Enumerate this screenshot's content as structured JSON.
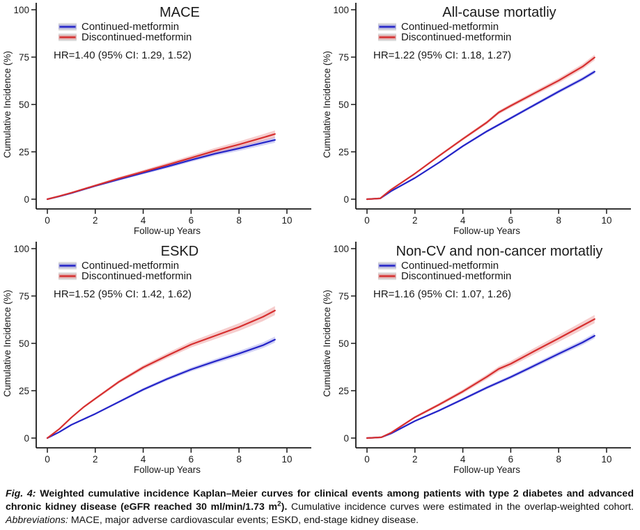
{
  "axes": {
    "x_label": "Follow-up Years",
    "y_label": "Cumulative Incidence (%)",
    "x_ticks": [
      0,
      2,
      4,
      6,
      8,
      10
    ],
    "y_ticks": [
      0,
      25,
      50,
      75,
      100
    ],
    "x_range": [
      0,
      10
    ],
    "y_range": [
      0,
      100
    ],
    "grid": "off",
    "legend_position": "top-left-inside"
  },
  "colors": {
    "continued_line": "#2424C8",
    "discontinued_line": "#D62F2F",
    "continued_ribbon": "rgba(90,90,220,0.28)",
    "discontinued_ribbon": "rgba(225,90,90,0.30)",
    "legend_key_bg": "#DEDEDE",
    "axis": "#1a1a1a"
  },
  "chart_data": [
    {
      "type": "line",
      "title": "MACE",
      "hr_label": "HR=1.40 (95% CI: 1.29, 1.52)",
      "xlabel": "Follow-up Years",
      "ylabel": "Cumulative Incidence (%)",
      "xlim": [
        0,
        10
      ],
      "ylim": [
        0,
        100
      ],
      "series": [
        {
          "name": "Continued-metformin",
          "color": "#2424C8",
          "ribbon": "rgba(90,90,220,0.28)",
          "ci_halfwidth_end": 1.3,
          "points": [
            [
              0,
              0
            ],
            [
              0.5,
              1.5
            ],
            [
              1,
              3.2
            ],
            [
              2,
              7.0
            ],
            [
              3,
              10.5
            ],
            [
              4,
              13.9
            ],
            [
              5,
              17.2
            ],
            [
              6,
              20.7
            ],
            [
              7,
              24.0
            ],
            [
              8,
              26.8
            ],
            [
              9,
              29.8
            ],
            [
              9.5,
              31.3
            ]
          ]
        },
        {
          "name": "Discontinued-metformin",
          "color": "#D62F2F",
          "ribbon": "rgba(225,90,90,0.30)",
          "ci_halfwidth_end": 1.7,
          "points": [
            [
              0,
              0
            ],
            [
              0.5,
              1.6
            ],
            [
              1,
              3.4
            ],
            [
              2,
              7.2
            ],
            [
              3,
              11.0
            ],
            [
              4,
              14.5
            ],
            [
              5,
              18.1
            ],
            [
              6,
              21.8
            ],
            [
              7,
              25.6
            ],
            [
              8,
              28.9
            ],
            [
              9,
              32.5
            ],
            [
              9.5,
              34.4
            ]
          ]
        }
      ]
    },
    {
      "type": "line",
      "title": "All-cause mortatliy",
      "hr_label": "HR=1.22 (95% CI: 1.18, 1.27)",
      "xlabel": "Follow-up Years",
      "ylabel": "Cumulative Incidence (%)",
      "xlim": [
        0,
        10
      ],
      "ylim": [
        0,
        100
      ],
      "series": [
        {
          "name": "Continued-metformin",
          "color": "#2424C8",
          "ribbon": "rgba(90,90,220,0.28)",
          "ci_halfwidth_end": 0.9,
          "points": [
            [
              0,
              0
            ],
            [
              0.55,
              0.4
            ],
            [
              1,
              4.2
            ],
            [
              2,
              11.2
            ],
            [
              3,
              19.3
            ],
            [
              4,
              28.0
            ],
            [
              5,
              35.8
            ],
            [
              6,
              42.8
            ],
            [
              7,
              49.8
            ],
            [
              8,
              56.8
            ],
            [
              9,
              63.5
            ],
            [
              9.5,
              67.3
            ]
          ]
        },
        {
          "name": "Discontinued-metformin",
          "color": "#D62F2F",
          "ribbon": "rgba(225,90,90,0.30)",
          "ci_halfwidth_end": 1.3,
          "points": [
            [
              0,
              0
            ],
            [
              0.55,
              0.4
            ],
            [
              1,
              5.0
            ],
            [
              2,
              13.5
            ],
            [
              3,
              22.8
            ],
            [
              4,
              31.8
            ],
            [
              5,
              40.5
            ],
            [
              5.5,
              45.8
            ],
            [
              6,
              49.3
            ],
            [
              7,
              56.0
            ],
            [
              8,
              62.6
            ],
            [
              9,
              70.0
            ],
            [
              9.5,
              74.8
            ]
          ]
        }
      ]
    },
    {
      "type": "line",
      "title": "ESKD",
      "hr_label": "HR=1.52 (95% CI: 1.42, 1.62)",
      "xlabel": "Follow-up Years",
      "ylabel": "Cumulative Incidence (%)",
      "xlim": [
        0,
        10
      ],
      "ylim": [
        0,
        100
      ],
      "series": [
        {
          "name": "Continued-metformin",
          "color": "#2424C8",
          "ribbon": "rgba(90,90,220,0.28)",
          "ci_halfwidth_end": 1.4,
          "points": [
            [
              0,
              0
            ],
            [
              0.5,
              3.2
            ],
            [
              1,
              7.0
            ],
            [
              2,
              12.8
            ],
            [
              3,
              19.2
            ],
            [
              4,
              25.6
            ],
            [
              5,
              31.2
            ],
            [
              6,
              36.2
            ],
            [
              7,
              40.5
            ],
            [
              8,
              44.6
            ],
            [
              9,
              49.0
            ],
            [
              9.5,
              52.0
            ]
          ]
        },
        {
          "name": "Discontinued-metformin",
          "color": "#D62F2F",
          "ribbon": "rgba(225,90,90,0.30)",
          "ci_halfwidth_end": 2.2,
          "points": [
            [
              0,
              0
            ],
            [
              0.5,
              4.8
            ],
            [
              1,
              10.8
            ],
            [
              1.5,
              16.2
            ],
            [
              2,
              20.8
            ],
            [
              3,
              29.8
            ],
            [
              4,
              37.3
            ],
            [
              5,
              43.5
            ],
            [
              6,
              49.4
            ],
            [
              7,
              54.0
            ],
            [
              8,
              58.6
            ],
            [
              9,
              64.0
            ],
            [
              9.5,
              67.3
            ]
          ]
        }
      ]
    },
    {
      "type": "line",
      "title": "Non-CV and non-cancer mortatliy",
      "hr_label": "HR=1.16 (95% CI: 1.07, 1.26)",
      "xlabel": "Follow-up Years",
      "ylabel": "Cumulative Incidence (%)",
      "xlim": [
        0,
        10
      ],
      "ylim": [
        0,
        100
      ],
      "series": [
        {
          "name": "Continued-metformin",
          "color": "#2424C8",
          "ribbon": "rgba(90,90,220,0.28)",
          "ci_halfwidth_end": 1.2,
          "points": [
            [
              0,
              0
            ],
            [
              0.6,
              0.4
            ],
            [
              1,
              2.4
            ],
            [
              2,
              9.0
            ],
            [
              3,
              14.5
            ],
            [
              4,
              20.5
            ],
            [
              5,
              26.6
            ],
            [
              6,
              32.2
            ],
            [
              7,
              38.3
            ],
            [
              8,
              44.5
            ],
            [
              9,
              50.5
            ],
            [
              9.5,
              54.0
            ]
          ]
        },
        {
          "name": "Discontinued-metformin",
          "color": "#D62F2F",
          "ribbon": "rgba(225,90,90,0.30)",
          "ci_halfwidth_end": 2.0,
          "points": [
            [
              0,
              0
            ],
            [
              0.6,
              0.4
            ],
            [
              1,
              2.8
            ],
            [
              2,
              11.0
            ],
            [
              3,
              17.6
            ],
            [
              4,
              24.6
            ],
            [
              5,
              32.3
            ],
            [
              5.5,
              36.5
            ],
            [
              6,
              39.2
            ],
            [
              7,
              46.0
            ],
            [
              8,
              52.6
            ],
            [
              9,
              59.4
            ],
            [
              9.5,
              62.8
            ]
          ]
        }
      ]
    }
  ],
  "caption": {
    "parts": [
      {
        "style": "bold-italic",
        "text": "Fig. 4: "
      },
      {
        "style": "bold",
        "text": "Weighted cumulative incidence Kaplan–Meier curves for clinical events among patients with type 2 diabetes and advanced chronic kidney disease (eGFR reached 30 ml/min/1.73 m"
      },
      {
        "style": "bold-sup",
        "text": "2"
      },
      {
        "style": "bold",
        "text": "). "
      },
      {
        "style": "regular",
        "text": "Cumulative incidence curves were estimated in the overlap-weighted cohort. "
      },
      {
        "style": "italic",
        "text": "Abbreviations: "
      },
      {
        "style": "regular",
        "text": "MACE, major adverse cardiovascular events; ESKD, end-stage kidney disease."
      }
    ]
  }
}
